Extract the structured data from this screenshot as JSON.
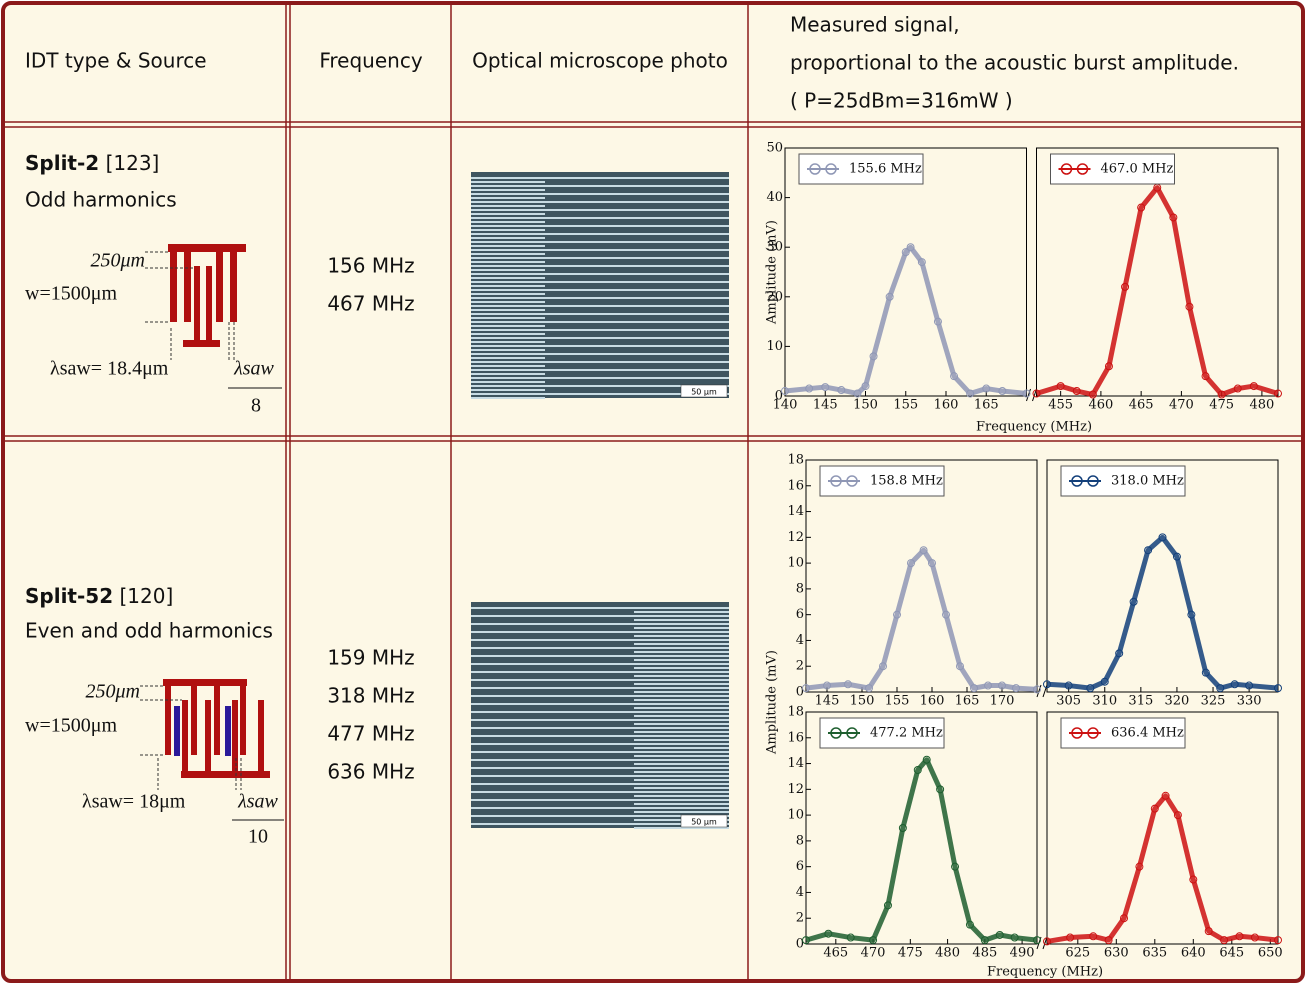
{
  "table": {
    "header": {
      "idt": "IDT type & Source",
      "frequency": "Frequency",
      "photo": "Optical microscope photo",
      "signal": [
        "Measured signal,",
        "proportional to the acoustic burst amplitude.",
        "( P=25dBm=316mW )"
      ]
    },
    "rows": [
      {
        "name": "Split-2",
        "ref": "[123]",
        "harmonics": "Odd harmonics",
        "diagram": {
          "gap": "250μm",
          "width": "w=1500μm",
          "wavelength": "λsaw= 18.4μm",
          "finger_num": "λsaw",
          "finger_den": "8"
        },
        "frequencies": [
          "156 MHz",
          "467 MHz"
        ],
        "photo_scale": "50 μm",
        "chart": {
          "type": "line",
          "ylabel": "Amplitude (mV)",
          "xlabel": "Frequency (MHz)",
          "panels": [
            {
              "ylim": [
                0,
                50
              ],
              "yticks": [
                0,
                10,
                20,
                30,
                40,
                50
              ],
              "segments": [
                {
                  "xlim": [
                    140,
                    170
                  ],
                  "xticks": [
                    140,
                    145,
                    150,
                    155,
                    160,
                    165
                  ]
                },
                {
                  "xlim": [
                    452,
                    482
                  ],
                  "xticks": [
                    455,
                    460,
                    465,
                    470,
                    475,
                    480
                  ]
                }
              ],
              "series": [
                {
                  "name": "155.6 MHz",
                  "color": "#8f97b5",
                  "segment": 0,
                  "x": [
                    140,
                    143,
                    145,
                    147,
                    149,
                    150,
                    151,
                    153,
                    155,
                    155.6,
                    157,
                    159,
                    161,
                    163,
                    165,
                    167,
                    170
                  ],
                  "values": [
                    1,
                    1.5,
                    1.8,
                    1.2,
                    0.5,
                    2,
                    8,
                    20,
                    29,
                    30,
                    27,
                    15,
                    4,
                    0.5,
                    1.5,
                    1,
                    0.5
                  ]
                },
                {
                  "name": "467.0 MHz",
                  "color": "#cc1111",
                  "segment": 1,
                  "x": [
                    452,
                    455,
                    457,
                    459,
                    461,
                    463,
                    465,
                    467,
                    469,
                    471,
                    473,
                    475,
                    477,
                    479,
                    482
                  ],
                  "values": [
                    0.5,
                    2,
                    1,
                    0.3,
                    6,
                    22,
                    38,
                    42,
                    36,
                    18,
                    4,
                    0.3,
                    1.5,
                    2,
                    0.5
                  ]
                }
              ]
            }
          ]
        }
      },
      {
        "name": "Split-52",
        "ref": "[120]",
        "harmonics": "Even and odd harmonics",
        "diagram": {
          "gap": "250μm",
          "width": "w=1500μm",
          "wavelength": "λsaw= 18μm",
          "finger_num": "λsaw",
          "finger_den": "10"
        },
        "frequencies": [
          "159 MHz",
          "318 MHz",
          "477 MHz",
          "636 MHz"
        ],
        "photo_scale": "50 μm",
        "chart": {
          "type": "line",
          "ylabel": "Amplitude (mV)",
          "xlabel": "Frequency (MHz)",
          "panels": [
            {
              "ylim": [
                0,
                18
              ],
              "yticks": [
                0,
                2,
                4,
                6,
                8,
                10,
                12,
                14,
                16,
                18
              ],
              "segments": [
                {
                  "xlim": [
                    142,
                    175
                  ],
                  "xticks": [
                    145,
                    150,
                    155,
                    160,
                    165,
                    170
                  ]
                },
                {
                  "xlim": [
                    302,
                    334
                  ],
                  "xticks": [
                    305,
                    310,
                    315,
                    320,
                    325,
                    330
                  ]
                }
              ],
              "series": [
                {
                  "name": "158.8 MHz",
                  "color": "#8f97b5",
                  "segment": 0,
                  "x": [
                    142,
                    145,
                    148,
                    151,
                    153,
                    155,
                    157,
                    158.8,
                    160,
                    162,
                    164,
                    166,
                    168,
                    170,
                    172,
                    175
                  ],
                  "values": [
                    0.3,
                    0.5,
                    0.6,
                    0.3,
                    2,
                    6,
                    10,
                    11,
                    10,
                    6,
                    2,
                    0.3,
                    0.5,
                    0.5,
                    0.3,
                    0.2
                  ]
                },
                {
                  "name": "318.0 MHz",
                  "color": "#123f7a",
                  "segment": 1,
                  "x": [
                    302,
                    305,
                    308,
                    310,
                    312,
                    314,
                    316,
                    318,
                    320,
                    322,
                    324,
                    326,
                    328,
                    330,
                    334
                  ],
                  "values": [
                    0.6,
                    0.5,
                    0.3,
                    0.8,
                    3,
                    7,
                    11,
                    12,
                    10.5,
                    6,
                    1.5,
                    0.3,
                    0.6,
                    0.5,
                    0.3
                  ]
                }
              ]
            },
            {
              "ylim": [
                0,
                18
              ],
              "yticks": [
                0,
                2,
                4,
                6,
                8,
                10,
                12,
                14,
                16,
                18
              ],
              "segments": [
                {
                  "xlim": [
                    461,
                    492
                  ],
                  "xticks": [
                    465,
                    470,
                    475,
                    480,
                    485,
                    490
                  ]
                },
                {
                  "xlim": [
                    621,
                    651
                  ],
                  "xticks": [
                    625,
                    630,
                    635,
                    640,
                    645,
                    650
                  ]
                }
              ],
              "series": [
                {
                  "name": "477.2 MHz",
                  "color": "#1d5e2e",
                  "segment": 0,
                  "x": [
                    461,
                    464,
                    467,
                    470,
                    472,
                    474,
                    476,
                    477.2,
                    479,
                    481,
                    483,
                    485,
                    487,
                    489,
                    492
                  ],
                  "values": [
                    0.3,
                    0.8,
                    0.5,
                    0.3,
                    3,
                    9,
                    13.5,
                    14.3,
                    12,
                    6,
                    1.5,
                    0.3,
                    0.7,
                    0.5,
                    0.3
                  ]
                },
                {
                  "name": "636.4 MHz",
                  "color": "#cc1111",
                  "segment": 1,
                  "x": [
                    621,
                    624,
                    627,
                    629,
                    631,
                    633,
                    635,
                    636.4,
                    638,
                    640,
                    642,
                    644,
                    646,
                    648,
                    651
                  ],
                  "values": [
                    0.2,
                    0.5,
                    0.6,
                    0.3,
                    2,
                    6,
                    10.5,
                    11.5,
                    10,
                    5,
                    1,
                    0.3,
                    0.6,
                    0.5,
                    0.3
                  ]
                }
              ]
            }
          ]
        }
      }
    ]
  }
}
